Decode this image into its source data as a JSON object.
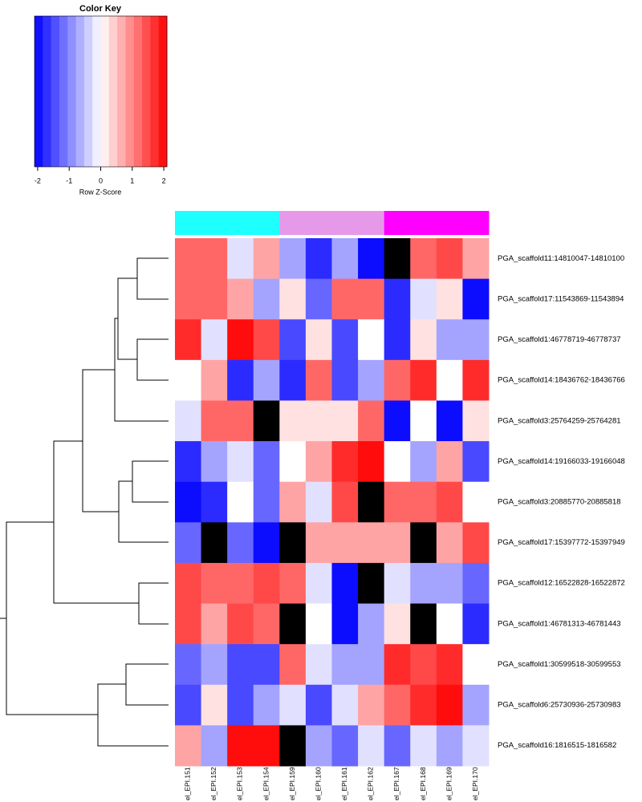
{
  "chart_data": {
    "type": "heatmap",
    "rows": [
      "PGA_scaffold11:14810047-14810100",
      "PGA_scaffold17:11543869-11543894",
      "PGA_scaffold1:46778719-46778737",
      "PGA_scaffold14:18436762-18436766",
      "PGA_scaffold3:25764259-25764281",
      "PGA_scaffold14:19166033-19166048",
      "PGA_scaffold3:20885770-20885818",
      "PGA_scaffold17:15397772-15397949",
      "PGA_scaffold12:16522828-16522872",
      "PGA_scaffold1:46781313-46781443",
      "PGA_scaffold1:30599518-30599553",
      "PGA_scaffold6:25730936-25730983",
      "PGA_scaffold16:1816515-1816582"
    ],
    "columns": [
      "el_EPI.151",
      "el_EPI.152",
      "el_EPI.153",
      "el_EPI.154",
      "el_EPI.159",
      "el_EPI.160",
      "el_EPI.161",
      "el_EPI.162",
      "el_EPI.167",
      "el_EPI.168",
      "el_EPI.169",
      "el_EPI.170"
    ],
    "column_colors": [
      "#1effff",
      "#1effff",
      "#1effff",
      "#1effff",
      "#e799e9",
      "#e799e9",
      "#e799e9",
      "#e799e9",
      "#ff00ff",
      "#ff00ff",
      "#ff00ff",
      "#ff00ff"
    ],
    "values": [
      [
        1.25,
        1.25,
        -0.25,
        0.75,
        -0.75,
        -1.75,
        -0.75,
        -2,
        null,
        1.25,
        1.5,
        0.75
      ],
      [
        1.25,
        1.25,
        0.75,
        -0.75,
        0.25,
        -1.25,
        1.25,
        1.25,
        -1.75,
        -0.25,
        0.25,
        -2
      ],
      [
        1.75,
        -0.25,
        2,
        1.5,
        -1.5,
        0.25,
        -1.5,
        0,
        -1.75,
        0.25,
        -0.75,
        -0.75
      ],
      [
        0,
        0.75,
        -1.75,
        -0.75,
        -1.75,
        1.25,
        -1.5,
        -0.75,
        1.25,
        1.75,
        0,
        1.75
      ],
      [
        -0.25,
        1.25,
        1.25,
        null,
        0.25,
        0.25,
        0.25,
        1.25,
        -2,
        0,
        -2,
        0.25
      ],
      [
        -1.75,
        -0.75,
        -0.25,
        -1.25,
        0,
        0.75,
        1.75,
        2,
        0,
        -0.75,
        0.75,
        -1.5
      ],
      [
        -2,
        -1.75,
        0,
        -1.25,
        0.75,
        -0.25,
        1.5,
        null,
        1.25,
        1.25,
        1.5,
        0
      ],
      [
        -1.25,
        null,
        -1.25,
        -2,
        null,
        0.75,
        0.75,
        0.75,
        0.75,
        null,
        0.75,
        1.5
      ],
      [
        1.5,
        1.25,
        1.25,
        1.5,
        1.25,
        -0.25,
        -2,
        null,
        -0.25,
        -0.75,
        -0.75,
        -1.25
      ],
      [
        1.5,
        0.75,
        1.5,
        1.25,
        null,
        0,
        -2,
        -0.75,
        0.25,
        null,
        0,
        -1.75
      ],
      [
        -1.25,
        -0.75,
        -1.5,
        -1.5,
        1.25,
        -0.25,
        -0.75,
        -0.75,
        1.75,
        1.5,
        1.75,
        0
      ],
      [
        -1.5,
        0.25,
        -1.5,
        -0.75,
        -0.25,
        -1.5,
        -0.25,
        0.75,
        1.25,
        1.75,
        2,
        -0.75
      ],
      [
        0.75,
        -0.75,
        2,
        2,
        null,
        -0.75,
        -1.25,
        -0.25,
        -1.25,
        -0.25,
        -0.75,
        -0.25
      ]
    ],
    "low_color": "#0000ff",
    "mid_color": "#ffffff",
    "high_color": "#ff0000",
    "na_color": "#000000",
    "color_key": {
      "title": "Color Key",
      "xlabel": "Row Z-Score",
      "xlim": [
        -2.1,
        2.1
      ],
      "xticks": [
        -2,
        -1,
        0,
        1,
        2
      ],
      "bins": 16
    }
  }
}
